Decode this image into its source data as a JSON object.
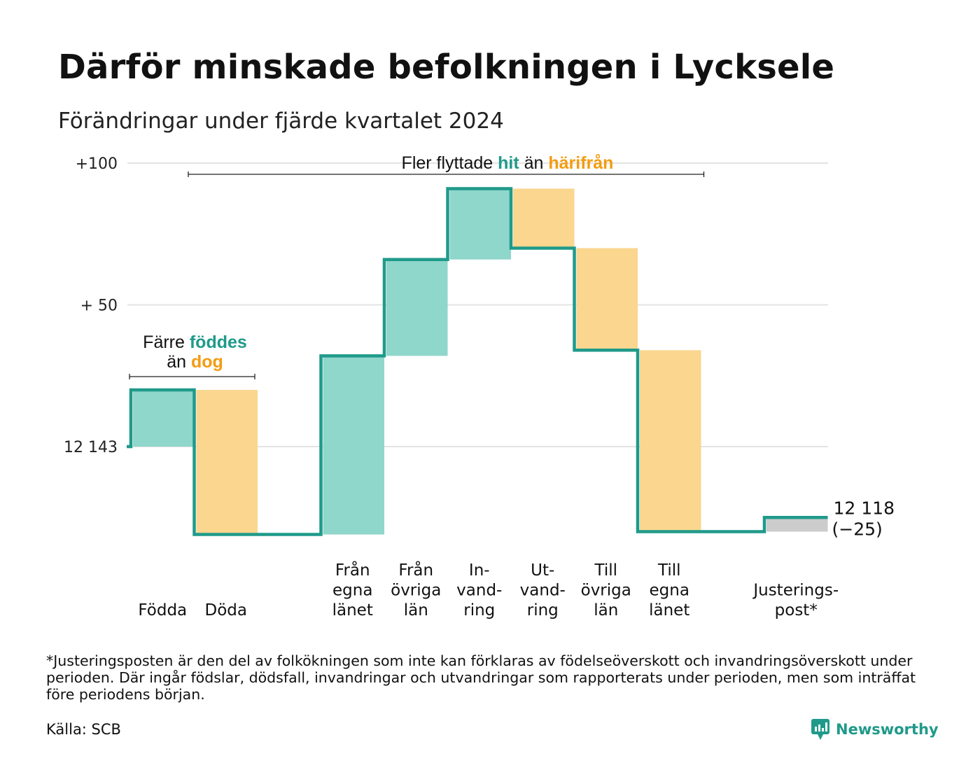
{
  "title": "Därför minskade befolkningen i Lycksele",
  "subtitle": "Förändringar under fjärde kvartalet 2024",
  "colors": {
    "increase_fill": "#8fd6cb",
    "decrease_fill": "#fad68f",
    "adjust_fill": "#cccccc",
    "line": "#1f9a8a",
    "accent_teal": "#1f9a8a",
    "accent_orange": "#f39c12",
    "grid": "#e3e3e3"
  },
  "chart_data": {
    "type": "waterfall",
    "ylim": [
      -32,
      103
    ],
    "start": {
      "label": "12 143",
      "value": 0
    },
    "yticks": [
      {
        "value": 100,
        "label": "+100"
      },
      {
        "value": 50,
        "label": "+ 50"
      },
      {
        "value": 0,
        "label": "12 143"
      }
    ],
    "steps": [
      {
        "name": "Födda",
        "label": [
          "",
          "",
          "Födda"
        ],
        "delta": 20,
        "kind": "increase"
      },
      {
        "name": "Döda",
        "label": [
          "",
          "",
          "Döda"
        ],
        "delta": -51,
        "kind": "decrease"
      },
      {
        "name": "",
        "label": [
          "",
          "",
          ""
        ],
        "delta": 0,
        "kind": "none"
      },
      {
        "name": "Från egna länet",
        "label": [
          "Från",
          "egna",
          "länet"
        ],
        "delta": 63,
        "kind": "increase"
      },
      {
        "name": "Från övriga län",
        "label": [
          "Från",
          "övriga",
          "län"
        ],
        "delta": 34,
        "kind": "increase"
      },
      {
        "name": "Invandring",
        "label": [
          "In-",
          "vand-",
          "ring"
        ],
        "delta": 25,
        "kind": "increase"
      },
      {
        "name": "Utvandring",
        "label": [
          "Ut-",
          "vand-",
          "ring"
        ],
        "delta": -21,
        "kind": "decrease"
      },
      {
        "name": "Till övriga län",
        "label": [
          "Till",
          "övriga",
          "län"
        ],
        "delta": -36,
        "kind": "decrease"
      },
      {
        "name": "Till egna länet",
        "label": [
          "Till",
          "egna",
          "länet"
        ],
        "delta": -64,
        "kind": "decrease"
      },
      {
        "name": "",
        "label": [
          "",
          "",
          ""
        ],
        "delta": 0,
        "kind": "none"
      },
      {
        "name": "Justeringspost*",
        "label": [
          "",
          "Justerings-",
          "post*"
        ],
        "delta": 5,
        "kind": "adjust"
      }
    ],
    "end": {
      "label": "12 118",
      "change": "(−25)",
      "value": -25
    },
    "annotations": [
      {
        "id": "births",
        "from_step": 0,
        "to_step": 1,
        "line1": {
          "pre": "Färre ",
          "hl": "föddes",
          "hl_color": "teal"
        },
        "line2": {
          "pre": "än ",
          "hl": "dog",
          "hl_color": "orange"
        }
      },
      {
        "id": "migration",
        "from_step": 3,
        "to_step": 8,
        "line1": {
          "pre": "Fler flyttade ",
          "hl": "hit",
          "hl_color": "teal",
          "mid": " än ",
          "hl2": "härifrån",
          "hl2_color": "orange"
        }
      }
    ]
  },
  "footnote": "*Justeringsposten är den del av folkökningen som inte kan förklaras av födelseöverskott och invandringsöverskott under perioden. Där ingår födslar, dödsfall, invandringar och utvandringar som rapporterats under perioden, men som inträffat före periodens början.",
  "source": "Källa: SCB",
  "brand": {
    "name": "Newsworthy",
    "icon": "newsworthy-logo-icon"
  }
}
